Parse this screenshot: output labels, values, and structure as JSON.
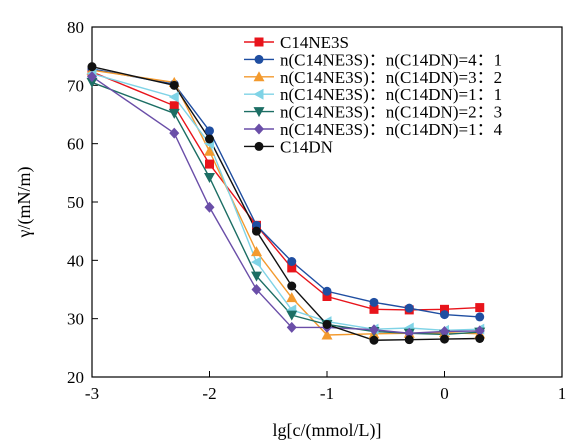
{
  "chart_data": {
    "type": "line",
    "title": "",
    "xlabel": "lg[c/(mmol/L)]",
    "ylabel": "γ/(mN/m)",
    "xlim": [
      -3,
      1
    ],
    "ylim": [
      20,
      80
    ],
    "xticks": [
      "-3",
      "-2",
      "-1",
      "0",
      "1"
    ],
    "yticks": [
      "20",
      "30",
      "40",
      "50",
      "60",
      "70",
      "80"
    ],
    "grid": false,
    "legend_position": "top-right",
    "x": [
      -3,
      -2.3,
      -2,
      -1.6,
      -1.3,
      -1,
      -0.6,
      -0.3,
      0,
      0.3
    ],
    "series": [
      {
        "name": "C14NE3S",
        "color": "#e8141b",
        "marker": "square",
        "values": [
          72.3,
          66.5,
          56.5,
          46,
          38.7,
          33.8,
          31.6,
          31.5,
          31.6,
          31.9
        ]
      },
      {
        "name": "n(C14NE3S)：n(C14DN)=4：1",
        "color": "#1f4ea1",
        "marker": "circle",
        "values": [
          72.8,
          70.2,
          62.2,
          46,
          39.8,
          34.7,
          32.8,
          31.8,
          30.7,
          30.3
        ]
      },
      {
        "name": "n(C14NE3S)：n(C14DN)=3：2",
        "color": "#f39a2e",
        "marker": "triangle-up",
        "values": [
          72.6,
          70.5,
          58.7,
          41.5,
          33.6,
          27.2,
          27.4,
          27.5,
          27.6,
          27.4
        ]
      },
      {
        "name": "n(C14NE3S)：n(C14DN)=1：1",
        "color": "#7fd3e6",
        "marker": "triangle-left",
        "values": [
          72,
          68,
          60,
          39.7,
          31.5,
          29.5,
          28.2,
          28.4,
          28,
          28.2
        ]
      },
      {
        "name": "n(C14NE3S)：n(C14DN)=2：3",
        "color": "#1c6e64",
        "marker": "triangle-down",
        "values": [
          70.5,
          65.2,
          54.2,
          37.3,
          30.6,
          29,
          27.8,
          27.5,
          27.3,
          27.7
        ]
      },
      {
        "name": "n(C14NE3S)：n(C14DN)=1：4",
        "color": "#6a4ea8",
        "marker": "diamond",
        "values": [
          71.5,
          61.8,
          49.1,
          35,
          28.5,
          28.5,
          28.1,
          27.5,
          27.8,
          27.9
        ]
      },
      {
        "name": "C14DN",
        "color": "#111111",
        "marker": "circle",
        "values": [
          73.2,
          70,
          60.8,
          45,
          35.6,
          29,
          26.3,
          26.4,
          26.5,
          26.6
        ]
      }
    ]
  }
}
